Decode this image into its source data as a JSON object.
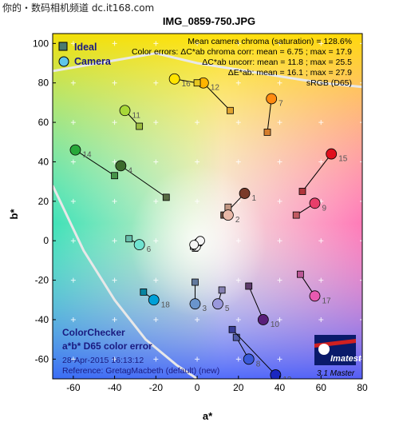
{
  "watermark": "你的・数码相机频道 dc.it168.com",
  "logo": {
    "brand": "Imatest",
    "version": "3.1  Master"
  },
  "info": {
    "line1": "ColorChecker",
    "line2": "a*b* D65 color error",
    "line3": "28-Apr-2015 16:13:12",
    "line4": "Reference: GretagMacbeth (default) (new)"
  },
  "annotations": [
    "Mean camera chroma (saturation) = 128.6%",
    "Color errors: ΔC*ab chroma corr:  mean = 6.75 ;  max = 17.9",
    "ΔC*ab uncorr:  mean = 11.8 ;  max = 25.5",
    "ΔE*ab:  mean = 16.1 ;  max = 27.9",
    "sRGB (D65)"
  ],
  "colors": {
    "ideal": "#4a7a70",
    "camera": "#5fc6e8"
  },
  "chart_data": {
    "type": "scatter",
    "title": "IMG_0859-750.JPG",
    "xlabel": "a*",
    "ylabel": "b*",
    "xlim": [
      -70,
      80
    ],
    "ylim": [
      -70,
      105
    ],
    "xticks": [
      -60,
      -40,
      -20,
      0,
      20,
      40,
      60,
      80
    ],
    "yticks": [
      -60,
      -40,
      -20,
      0,
      20,
      40,
      60,
      80,
      100
    ],
    "grid": true,
    "legend": {
      "position": "top-left",
      "entries": [
        "Ideal",
        "Camera"
      ]
    },
    "series": [
      {
        "name": "Ideal",
        "marker": "square"
      },
      {
        "name": "Camera",
        "marker": "circle"
      }
    ],
    "patches": [
      {
        "id": 1,
        "ideal": [
          13,
          13
        ],
        "camera": [
          23,
          24
        ],
        "ideal_color": "#735244",
        "camera_color": "#7a3a2a"
      },
      {
        "id": 2,
        "ideal": [
          15,
          17
        ],
        "camera": [
          15,
          13
        ],
        "ideal_color": "#c29682",
        "camera_color": "#e8b8a8"
      },
      {
        "id": 3,
        "ideal": [
          -1,
          -21
        ],
        "camera": [
          -1,
          -32
        ],
        "ideal_color": "#627a9d",
        "camera_color": "#6a95cc"
      },
      {
        "id": 4,
        "ideal": [
          -15,
          22
        ],
        "camera": [
          -37,
          38
        ],
        "ideal_color": "#576c43",
        "camera_color": "#3c6a2c"
      },
      {
        "id": 5,
        "ideal": [
          12,
          -25
        ],
        "camera": [
          10,
          -32
        ],
        "ideal_color": "#8580b1",
        "camera_color": "#9a98dc"
      },
      {
        "id": 6,
        "ideal": [
          -33,
          1
        ],
        "camera": [
          -28,
          -2
        ],
        "ideal_color": "#67bdaa",
        "camera_color": "#6fe3d0"
      },
      {
        "id": 7,
        "ideal": [
          34,
          55
        ],
        "camera": [
          36,
          72
        ],
        "ideal_color": "#d67e2c",
        "camera_color": "#ff8a10"
      },
      {
        "id": 8,
        "ideal": [
          19,
          -49
        ],
        "camera": [
          25,
          -60
        ],
        "ideal_color": "#505ba6",
        "camera_color": "#3a5ad8"
      },
      {
        "id": 9,
        "ideal": [
          48,
          13
        ],
        "camera": [
          57,
          19
        ],
        "ideal_color": "#c15a63",
        "camera_color": "#e83e6a"
      },
      {
        "id": 10,
        "ideal": [
          25,
          -23
        ],
        "camera": [
          32,
          -40
        ],
        "ideal_color": "#5e3c6c",
        "camera_color": "#5a1e7a"
      },
      {
        "id": 11,
        "ideal": [
          -28,
          58
        ],
        "camera": [
          -35,
          66
        ],
        "ideal_color": "#9dbc40",
        "camera_color": "#a8d838"
      },
      {
        "id": 12,
        "ideal": [
          16,
          66
        ],
        "camera": [
          3,
          80
        ],
        "ideal_color": "#e0a32e",
        "camera_color": "#ffb400"
      },
      {
        "id": 13,
        "ideal": [
          17,
          -45
        ],
        "camera": [
          38,
          -68
        ],
        "ideal_color": "#383d96",
        "camera_color": "#1a28c0"
      },
      {
        "id": 14,
        "ideal": [
          -40,
          33
        ],
        "camera": [
          -59,
          46
        ],
        "ideal_color": "#469449",
        "camera_color": "#28a83a"
      },
      {
        "id": 15,
        "ideal": [
          51,
          25
        ],
        "camera": [
          65,
          44
        ],
        "ideal_color": "#af363c",
        "camera_color": "#e0101e"
      },
      {
        "id": 16,
        "ideal": [
          0,
          80
        ],
        "camera": [
          -11,
          82
        ],
        "ideal_color": "#e7c71f",
        "camera_color": "#ffe400"
      },
      {
        "id": 17,
        "ideal": [
          50,
          -17
        ],
        "camera": [
          57,
          -28
        ],
        "ideal_color": "#bb5695",
        "camera_color": "#e85ab0"
      },
      {
        "id": 18,
        "ideal": [
          -26,
          -26
        ],
        "camera": [
          -21,
          -30
        ],
        "ideal_color": "#0885a1",
        "camera_color": "#00a0d8"
      }
    ]
  }
}
